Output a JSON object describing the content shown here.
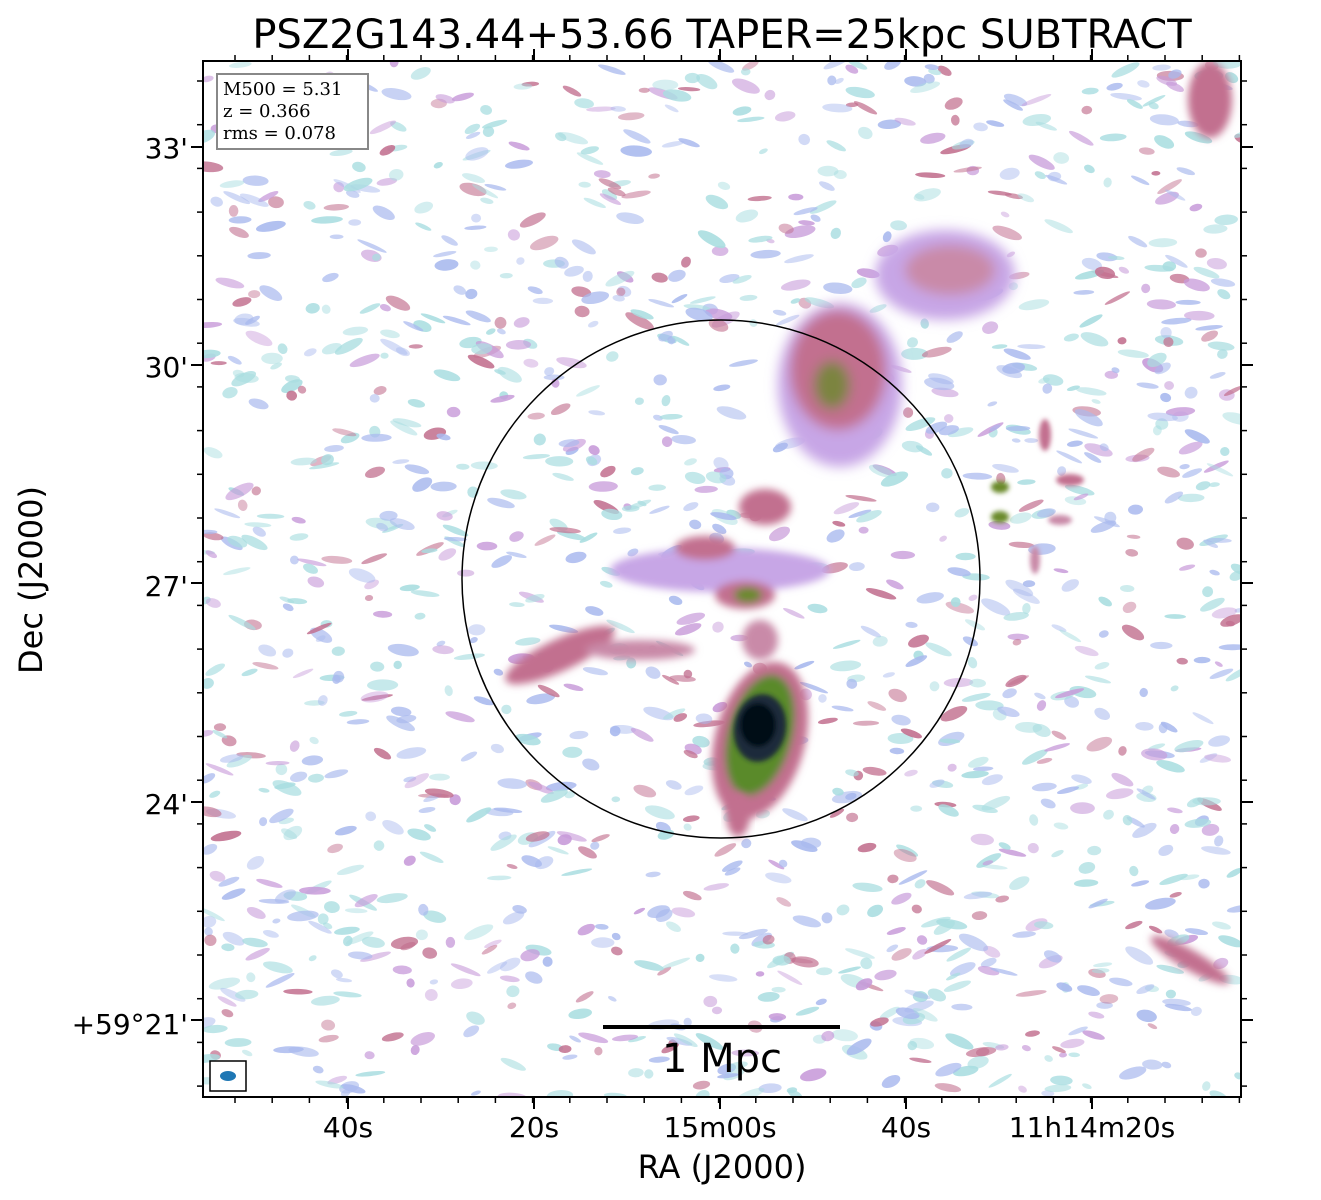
{
  "title": "PSZ2G143.44+53.66 TAPER=25kpc SUBTRACT",
  "axes": {
    "xlabel": "RA (J2000)",
    "ylabel": "Dec (J2000)",
    "x_ticks": [
      "40s",
      "20s",
      "15m00s",
      "40s",
      "11h14m20s"
    ],
    "y_ticks": [
      "33'",
      "30'",
      "27'",
      "24'",
      "+59°21'"
    ]
  },
  "info_box": {
    "m500": "M500 = 5.31",
    "z": "z = 0.366",
    "rms": "rms = 0.078"
  },
  "scale_bar": {
    "label": "1 Mpc"
  },
  "colors": {
    "frame": "#000000",
    "beam": "#1f77b4",
    "noise_cyan": "#a8dde0",
    "noise_blue": "#a9b9ee",
    "noise_lilac": "#c79ad9",
    "emission_pink": "#c2708f",
    "emission_green": "#6a8a2a",
    "emission_dark": "#0c1030"
  },
  "colormap": "cubehelix-like (white → cyan → blue → purple → pink → green → black)"
}
